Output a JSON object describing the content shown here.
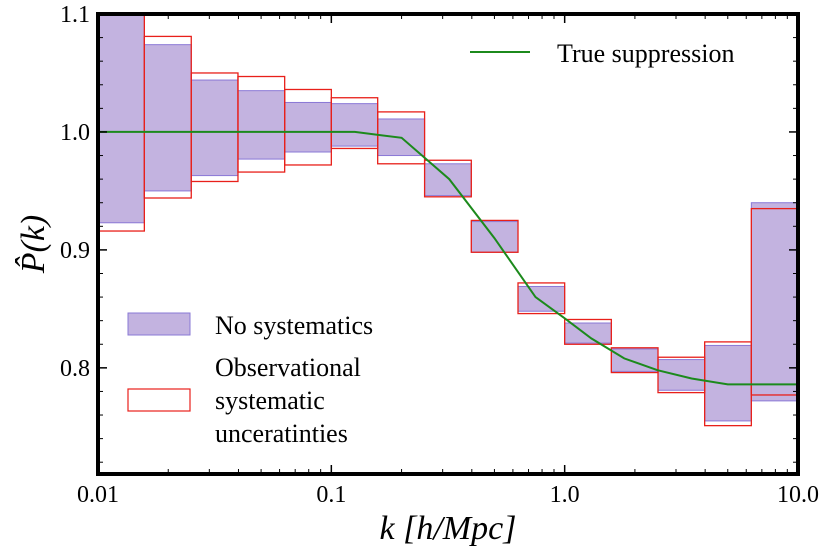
{
  "chart_data": {
    "type": "bar",
    "title": "",
    "xlabel": "k [h/Mpc]",
    "ylabel": "P̂(k)",
    "xscale": "log",
    "xlim": [
      0.01,
      10.0
    ],
    "ylim": [
      0.71,
      1.1
    ],
    "xticks": [
      "0.01",
      "0.1",
      "1.0",
      "10.0"
    ],
    "yticks": [
      "0.8",
      "0.9",
      "1.0",
      "1.1"
    ],
    "grid": false,
    "legend_placement": "top-right and lower-left",
    "colors": {
      "no_systematics_fill": "#c3b3e0",
      "no_systematics_edge": "#8a78d6",
      "observational_edge": "#e8201a",
      "true_line": "#1c8a1c"
    },
    "bin_edges": [
      0.01,
      0.0158,
      0.0251,
      0.0398,
      0.0631,
      0.1,
      0.158,
      0.251,
      0.398,
      0.631,
      1.0,
      1.585,
      2.512,
      3.981,
      6.31,
      10.0
    ],
    "series": [
      {
        "name": "No systematics",
        "style": "filled box",
        "low": [
          0.923,
          0.95,
          0.963,
          0.977,
          0.983,
          0.988,
          0.98,
          0.946,
          0.898,
          0.848,
          0.821,
          0.797,
          0.781,
          0.755,
          0.772
        ],
        "high": [
          1.1,
          1.074,
          1.044,
          1.035,
          1.025,
          1.024,
          1.011,
          0.973,
          0.924,
          0.869,
          0.838,
          0.816,
          0.807,
          0.819,
          0.94
        ]
      },
      {
        "name": "Observational systematic unceratinties",
        "style": "open box",
        "low": [
          0.916,
          0.944,
          0.958,
          0.966,
          0.972,
          0.986,
          0.973,
          0.945,
          0.898,
          0.846,
          0.82,
          0.796,
          0.779,
          0.751,
          0.777
        ],
        "high": [
          1.1,
          1.081,
          1.05,
          1.047,
          1.036,
          1.029,
          1.017,
          0.976,
          0.925,
          0.872,
          0.841,
          0.817,
          0.809,
          0.822,
          0.935
        ]
      },
      {
        "name": "True suppression",
        "style": "line",
        "x": [
          0.01,
          0.0158,
          0.0251,
          0.0398,
          0.0631,
          0.1,
          0.126,
          0.2,
          0.32,
          0.5,
          0.75,
          1.0,
          1.3,
          1.8,
          2.5,
          3.5,
          5.0,
          7.0,
          10.0
        ],
        "y": [
          1.0,
          1.0,
          1.0,
          1.0,
          1.0,
          1.0,
          1.0,
          0.995,
          0.96,
          0.91,
          0.86,
          0.842,
          0.825,
          0.808,
          0.798,
          0.791,
          0.786,
          0.786,
          0.786
        ]
      }
    ],
    "legend": {
      "top": [
        "True suppression"
      ],
      "bottom": [
        "No systematics",
        "Observational",
        "systematic",
        "unceratinties"
      ]
    }
  }
}
